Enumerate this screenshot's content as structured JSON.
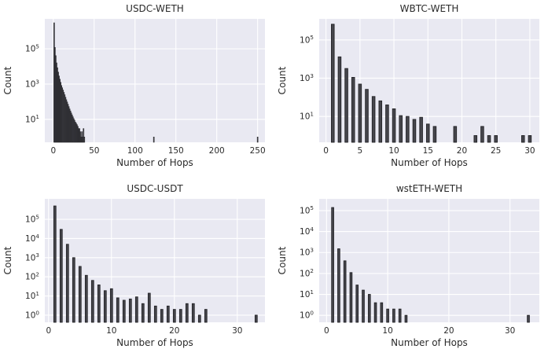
{
  "figure": {
    "background": "#ffffff",
    "plot_background": "#e9e9f2",
    "grid_color": "#ffffff",
    "bar_fill": "#46464c",
    "bar_edge": "#232327",
    "text_color": "#2b2b2b"
  },
  "chart_data": [
    {
      "type": "bar",
      "title": "USDC-WETH",
      "xlabel": "Number of Hops",
      "ylabel": "Count",
      "yscale": "log",
      "grid": true,
      "xticks": [
        0,
        50,
        100,
        150,
        200,
        250
      ],
      "ytick_exponents": [
        1,
        3,
        5
      ],
      "xlim": [
        -10.4,
        259
      ],
      "ylim_log10": [
        -0.3,
        6.7
      ],
      "bin_width": 1.0,
      "bars": [
        [
          1,
          3000000
        ],
        [
          2,
          120000
        ],
        [
          3,
          41000
        ],
        [
          4,
          16000
        ],
        [
          5,
          8500
        ],
        [
          6,
          4800
        ],
        [
          7,
          2900
        ],
        [
          8,
          1900
        ],
        [
          9,
          1260
        ],
        [
          10,
          830
        ],
        [
          11,
          620
        ],
        [
          12,
          460
        ],
        [
          13,
          340
        ],
        [
          14,
          250
        ],
        [
          15,
          180
        ],
        [
          16,
          130
        ],
        [
          17,
          97
        ],
        [
          18,
          72
        ],
        [
          19,
          53
        ],
        [
          20,
          39
        ],
        [
          21,
          30
        ],
        [
          22,
          23
        ],
        [
          23,
          18
        ],
        [
          24,
          14
        ],
        [
          25,
          11
        ],
        [
          26,
          9
        ],
        [
          27,
          7
        ],
        [
          28,
          6
        ],
        [
          29,
          5
        ],
        [
          30,
          4
        ],
        [
          31,
          3
        ],
        [
          32,
          3
        ],
        [
          33,
          2
        ],
        [
          34,
          1
        ],
        [
          35,
          2
        ],
        [
          36,
          1
        ],
        [
          37,
          3
        ],
        [
          38,
          1
        ],
        [
          123,
          1
        ],
        [
          250,
          1
        ]
      ]
    },
    {
      "type": "bar",
      "title": "WBTC-WETH",
      "xlabel": "Number of Hops",
      "ylabel": "Count",
      "yscale": "log",
      "grid": true,
      "xticks": [
        0,
        5,
        10,
        15,
        20,
        25,
        30
      ],
      "ytick_exponents": [
        1,
        3,
        5
      ],
      "xlim": [
        -1,
        31.4
      ],
      "ylim_log10": [
        -0.35,
        6.1
      ],
      "bin_width": 0.42,
      "bars": [
        [
          1,
          660000
        ],
        [
          2,
          13000
        ],
        [
          3,
          3200
        ],
        [
          4,
          1100
        ],
        [
          5,
          490
        ],
        [
          6,
          260
        ],
        [
          7,
          110
        ],
        [
          8,
          65
        ],
        [
          9,
          40
        ],
        [
          10,
          25
        ],
        [
          11,
          11
        ],
        [
          12,
          10
        ],
        [
          13,
          7
        ],
        [
          14,
          9
        ],
        [
          15,
          4
        ],
        [
          16,
          3
        ],
        [
          19,
          3
        ],
        [
          22,
          1
        ],
        [
          23,
          3
        ],
        [
          24,
          1
        ],
        [
          25,
          1
        ],
        [
          29,
          1
        ],
        [
          30,
          1
        ]
      ]
    },
    {
      "type": "bar",
      "title": "USDC-USDT",
      "xlabel": "Number of Hops",
      "ylabel": "Count",
      "yscale": "log",
      "grid": true,
      "xticks": [
        0,
        10,
        20,
        30
      ],
      "ytick_exponents": [
        0,
        1,
        2,
        3,
        4,
        5
      ],
      "xlim": [
        -0.6,
        34.4
      ],
      "ylim_log10": [
        -0.37,
        6.07
      ],
      "bin_width": 0.35,
      "bars": [
        [
          1,
          500000
        ],
        [
          2,
          30000
        ],
        [
          3,
          5000
        ],
        [
          4,
          1000
        ],
        [
          5,
          350
        ],
        [
          6,
          120
        ],
        [
          7,
          65
        ],
        [
          8,
          38
        ],
        [
          9,
          19
        ],
        [
          10,
          24
        ],
        [
          11,
          8
        ],
        [
          12,
          6
        ],
        [
          13,
          7
        ],
        [
          14,
          9
        ],
        [
          15,
          4
        ],
        [
          16,
          14
        ],
        [
          17,
          3
        ],
        [
          18,
          2
        ],
        [
          19,
          3
        ],
        [
          20,
          2
        ],
        [
          21,
          2
        ],
        [
          22,
          4
        ],
        [
          23,
          4
        ],
        [
          24,
          1
        ],
        [
          25,
          2
        ],
        [
          33,
          1
        ]
      ]
    },
    {
      "type": "bar",
      "title": "wstETH-WETH",
      "xlabel": "Number of Hops",
      "ylabel": "Count",
      "yscale": "log",
      "grid": true,
      "xticks": [
        0,
        10,
        20,
        30
      ],
      "ytick_exponents": [
        0,
        1,
        2,
        3,
        4,
        5
      ],
      "xlim": [
        -1.2,
        34.8
      ],
      "ylim_log10": [
        -0.33,
        5.56
      ],
      "bin_width": 0.35,
      "bars": [
        [
          1,
          140000
        ],
        [
          2,
          1500
        ],
        [
          3,
          400
        ],
        [
          4,
          110
        ],
        [
          5,
          28
        ],
        [
          6,
          16
        ],
        [
          7,
          10
        ],
        [
          8,
          4
        ],
        [
          9,
          4
        ],
        [
          10,
          2
        ],
        [
          11,
          2
        ],
        [
          12,
          2
        ],
        [
          13,
          1
        ],
        [
          33,
          1
        ]
      ]
    }
  ]
}
